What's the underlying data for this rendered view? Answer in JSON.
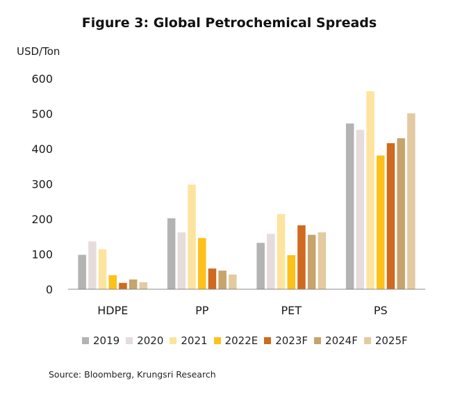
{
  "chart_data": {
    "type": "bar",
    "title": "Figure 3: Global Petrochemical Spreads",
    "ylabel": "USD/Ton",
    "xlabel": "",
    "ylim": [
      0,
      600
    ],
    "yticks": [
      "0",
      "100",
      "200",
      "300",
      "400",
      "500",
      "600"
    ],
    "categories": [
      "HDPE",
      "PP",
      "PET",
      "PS"
    ],
    "grid": false,
    "legend_position": "bottom",
    "series": [
      {
        "name": "2019",
        "color": "#b3b3b3",
        "values": [
          98,
          202,
          132,
          472
        ]
      },
      {
        "name": "2020",
        "color": "#e6dcdc",
        "values": [
          136,
          162,
          158,
          454
        ]
      },
      {
        "name": "2021",
        "color": "#fde49e",
        "values": [
          114,
          298,
          214,
          564
        ]
      },
      {
        "name": "2022E",
        "color": "#fdc11a",
        "values": [
          40,
          146,
          97,
          381
        ]
      },
      {
        "name": "2023F",
        "color": "#cf6a1f",
        "values": [
          18,
          59,
          182,
          416
        ]
      },
      {
        "name": "2024F",
        "color": "#c7a46b",
        "values": [
          28,
          53,
          155,
          430
        ]
      },
      {
        "name": "2025F",
        "color": "#e3caa0",
        "values": [
          20,
          42,
          162,
          501
        ]
      }
    ]
  },
  "source": "Source: Bloomberg, Krungsri Research"
}
